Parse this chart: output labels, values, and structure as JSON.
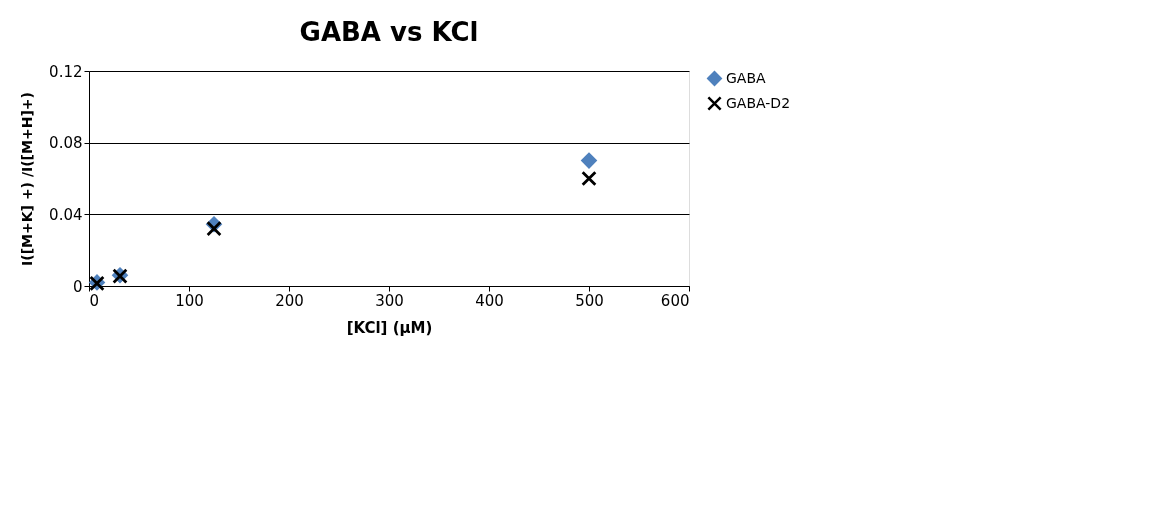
{
  "chart_data": {
    "type": "scatter",
    "title": "GABA vs KCl",
    "xlabel": "[KCl] (µM)",
    "ylabel": "I([M+K] +) /I([M+H]+)",
    "xlim": [
      0,
      600
    ],
    "xticks": [
      0,
      100,
      200,
      300,
      400,
      500,
      600
    ],
    "ylim": [
      0,
      0.12
    ],
    "yticks": [
      0,
      0.04,
      0.08,
      0.12
    ],
    "grid": "y",
    "legend": "right",
    "x": [
      8,
      31,
      125,
      500
    ],
    "series": [
      {
        "name": "GABA",
        "color": "#4f81bd",
        "marker": "diamond",
        "values": [
          0.002,
          0.006,
          0.0345,
          0.07
        ]
      },
      {
        "name": "GABA-D2",
        "color": "#000000",
        "marker": "cross",
        "values": [
          0.0015,
          0.0055,
          0.032,
          0.06
        ]
      }
    ]
  }
}
